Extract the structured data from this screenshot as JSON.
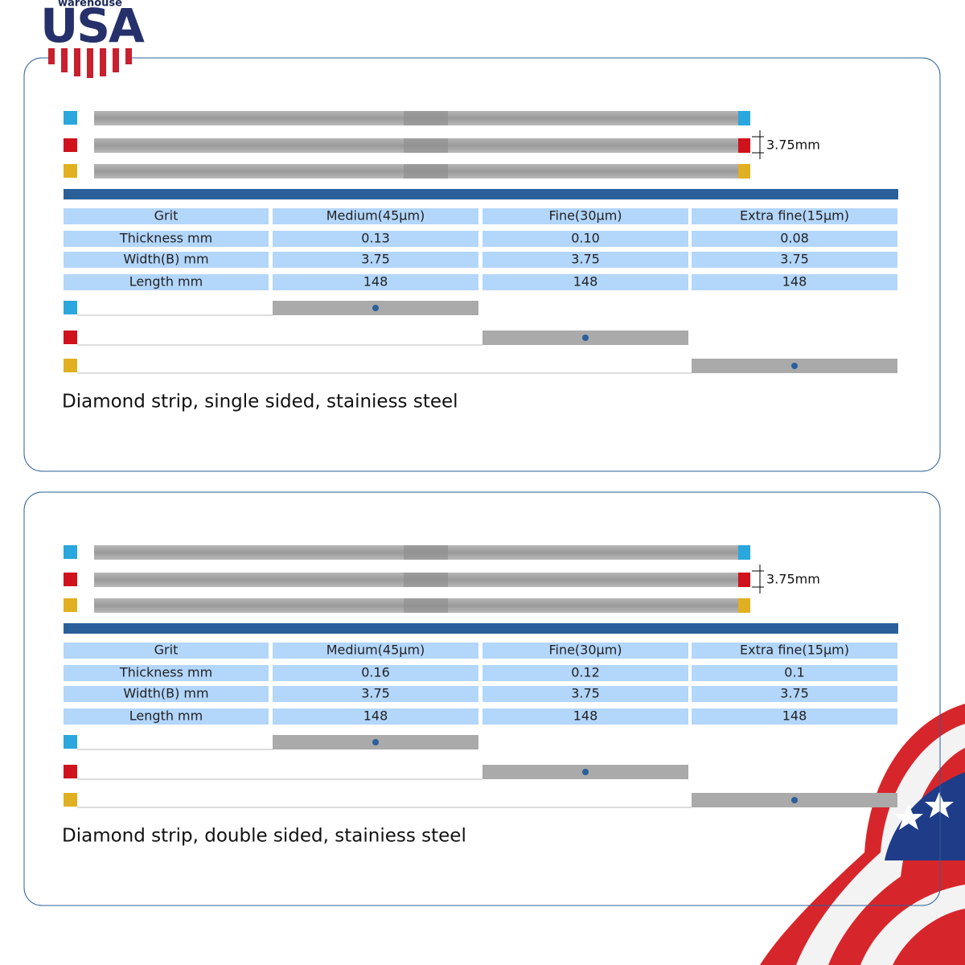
{
  "logo": {
    "small": "warehouse",
    "big": "USA"
  },
  "panels": [
    {
      "dimension": "3.75mm",
      "table": {
        "rows": [
          [
            "Grit",
            "Medium(45μm)",
            "Fine(30μm)",
            "Extra fine(15μm)"
          ],
          [
            "Thickness mm",
            "0.13",
            "0.10",
            "0.08"
          ],
          [
            "Width(B) mm",
            "3.75",
            "3.75",
            "3.75"
          ],
          [
            "Length mm",
            "148",
            "148",
            "148"
          ]
        ]
      },
      "caption": "Diamond strip, single sided, stainiess steel"
    },
    {
      "dimension": "3.75mm",
      "table": {
        "rows": [
          [
            "Grit",
            "Medium(45μm)",
            "Fine(30μm)",
            "Extra fine(15μm)"
          ],
          [
            "Thickness mm",
            "0.16",
            "0.12",
            "0.1"
          ],
          [
            "Width(B) mm",
            "3.75",
            "3.75",
            "3.75"
          ],
          [
            "Length mm",
            "148",
            "148",
            "148"
          ]
        ]
      },
      "caption": "Diamond strip, double sided, stainiess steel"
    }
  ]
}
